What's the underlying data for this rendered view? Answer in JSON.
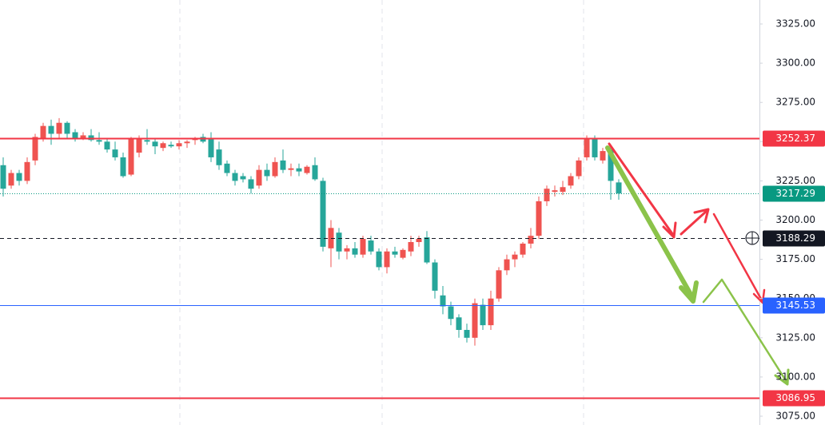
{
  "chart_data": {
    "type": "candlestick",
    "up_color": "#ef5350",
    "down_color": "#26a69a",
    "ylim": [
      3075,
      3325
    ],
    "yticks": [
      {
        "value": 3075,
        "label": "3075.00"
      },
      {
        "value": 3100,
        "label": "3100.00"
      },
      {
        "value": 3125,
        "label": "3125.00"
      },
      {
        "value": 3150,
        "label": "3150.00"
      },
      {
        "value": 3175,
        "label": "3175.00"
      },
      {
        "value": 3200,
        "label": "3200.00"
      },
      {
        "value": 3225,
        "label": "3225.00"
      },
      {
        "value": 3250,
        "label": "3250.00"
      },
      {
        "value": 3275,
        "label": "3275.00"
      },
      {
        "value": 3300,
        "label": "3300.00"
      },
      {
        "value": 3325,
        "label": "3325.00"
      }
    ],
    "open": [
      3235,
      3222,
      3230,
      3225,
      3238,
      3252,
      3260,
      3255,
      3262,
      3256,
      3252,
      3254,
      3251,
      3250,
      3245,
      3240,
      3229,
      3243,
      3251,
      3250,
      3246,
      3248,
      3247,
      3249,
      3251,
      3253,
      3252,
      3245,
      3236,
      3230,
      3228,
      3226,
      3222,
      3232,
      3228,
      3238,
      3232,
      3233,
      3230,
      3235,
      3225,
      3182,
      3192,
      3180,
      3182,
      3178,
      3187,
      3180,
      3170,
      3180,
      3176,
      3180,
      3186,
      3189,
      3173,
      3152,
      3145,
      3138,
      3130,
      3125,
      3146,
      3133,
      3150,
      3168,
      3175,
      3178,
      3185,
      3190,
      3212,
      3218,
      3218,
      3222,
      3228,
      3240,
      3252,
      3238,
      3245,
      3224
    ],
    "high": [
      3240,
      3232,
      3232,
      3240,
      3255,
      3262,
      3264,
      3265,
      3263,
      3258,
      3256,
      3258,
      3256,
      3252,
      3250,
      3243,
      3253,
      3254,
      3258,
      3252,
      3250,
      3250,
      3251,
      3251,
      3253,
      3255,
      3256,
      3250,
      3238,
      3232,
      3230,
      3228,
      3235,
      3236,
      3240,
      3245,
      3236,
      3236,
      3235,
      3240,
      3227,
      3200,
      3195,
      3184,
      3186,
      3190,
      3190,
      3182,
      3182,
      3183,
      3182,
      3190,
      3190,
      3193,
      3175,
      3158,
      3148,
      3140,
      3134,
      3150,
      3150,
      3155,
      3170,
      3178,
      3180,
      3186,
      3195,
      3215,
      3222,
      3222,
      3225,
      3230,
      3240,
      3254,
      3254,
      3246,
      3248,
      3226
    ],
    "low": [
      3215,
      3220,
      3222,
      3223,
      3235,
      3250,
      3248,
      3252,
      3252,
      3250,
      3251,
      3250,
      3248,
      3243,
      3238,
      3227,
      3228,
      3240,
      3248,
      3242,
      3244,
      3246,
      3245,
      3246,
      3248,
      3249,
      3237,
      3232,
      3228,
      3222,
      3224,
      3217,
      3220,
      3225,
      3227,
      3230,
      3228,
      3228,
      3229,
      3225,
      3180,
      3170,
      3175,
      3175,
      3176,
      3176,
      3178,
      3168,
      3166,
      3176,
      3175,
      3177,
      3183,
      3172,
      3150,
      3140,
      3133,
      3125,
      3122,
      3120,
      3130,
      3130,
      3148,
      3165,
      3170,
      3176,
      3182,
      3188,
      3209,
      3215,
      3216,
      3220,
      3226,
      3238,
      3238,
      3236,
      3213,
      3213
    ],
    "close": [
      3220,
      3230,
      3225,
      3237,
      3253,
      3260,
      3255,
      3262,
      3255,
      3252,
      3254,
      3251,
      3250,
      3245,
      3240,
      3228,
      3252,
      3252,
      3250,
      3247,
      3249,
      3247,
      3249,
      3250,
      3252,
      3250,
      3240,
      3235,
      3230,
      3225,
      3226,
      3220,
      3232,
      3228,
      3237,
      3232,
      3233,
      3231,
      3234,
      3226,
      3183,
      3195,
      3180,
      3182,
      3178,
      3188,
      3180,
      3170,
      3180,
      3178,
      3181,
      3186,
      3188,
      3173,
      3155,
      3145,
      3137,
      3130,
      3125,
      3147,
      3133,
      3150,
      3168,
      3175,
      3178,
      3185,
      3190,
      3212,
      3220,
      3219,
      3221,
      3228,
      3238,
      3252,
      3240,
      3244,
      3225,
      3217
    ],
    "price_lines": [
      {
        "value": 3252.37,
        "color": "#f23645",
        "style": "solid"
      },
      {
        "value": 3217.29,
        "color": "#089981",
        "style": "dotted"
      },
      {
        "value": 3188.29,
        "color": "#131722",
        "style": "dashed"
      },
      {
        "value": 3145.53,
        "color": "#2962ff",
        "style": "solid"
      },
      {
        "value": 3086.95,
        "color": "#f23645",
        "style": "solid"
      }
    ]
  }
}
